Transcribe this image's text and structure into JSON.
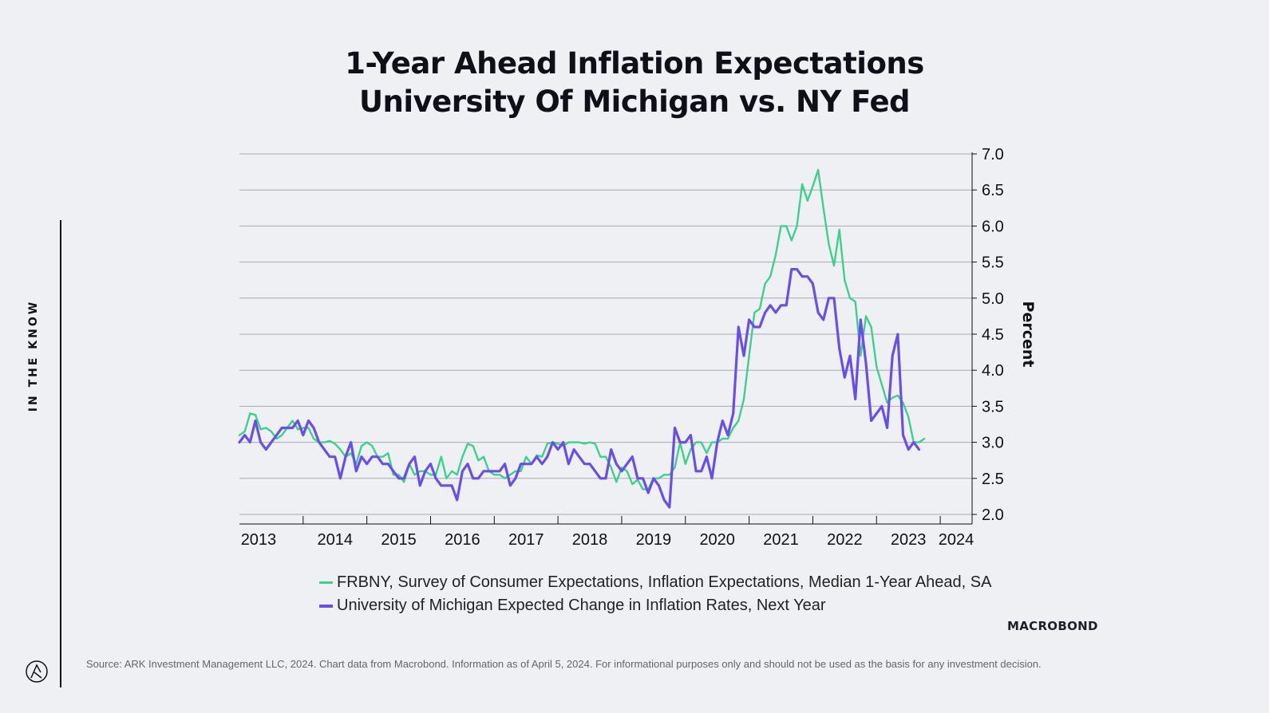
{
  "title_line1": "1-Year Ahead Inflation Expectations",
  "title_line2": "University Of Michigan vs. NY Fed",
  "side_label": "IN THE KNOW",
  "brand": "MACROBOND",
  "source": "Source: ARK Investment Management LLC, 2024. Chart data from Macrobond. Information as of April 5, 2024. For informational purposes only and should not be used as the basis for any investment decision.",
  "colors": {
    "frbny": "#3ecf8e",
    "umich": "#6b4fe0",
    "grid": "#a8a8ae",
    "text": "#111111"
  },
  "chart_data": {
    "type": "line",
    "ylabel": "Percent",
    "ylim": [
      2.0,
      7.0
    ],
    "yticks": [
      "7.0",
      "6.5",
      "6.0",
      "5.5",
      "5.0",
      "4.5",
      "4.0",
      "3.5",
      "3.0",
      "2.5",
      "2.0"
    ],
    "x_start": 2013.0,
    "x_end": 2024.5,
    "year_labels": [
      "2013",
      "2014",
      "2015",
      "2016",
      "2017",
      "2018",
      "2019",
      "2020",
      "2021",
      "2022",
      "2023",
      "2024"
    ],
    "series": [
      {
        "name": "FRBNY, Survey of Consumer Expectations, Inflation Expectations, Median 1-Year Ahead, SA",
        "start": 2013.0,
        "values": [
          3.1,
          3.15,
          3.4,
          3.38,
          3.18,
          3.2,
          3.15,
          3.05,
          3.1,
          3.2,
          3.3,
          3.18,
          3.2,
          3.2,
          3.05,
          3.0,
          3.0,
          3.02,
          2.98,
          2.9,
          2.8,
          2.85,
          2.7,
          2.95,
          3.0,
          2.95,
          2.8,
          2.8,
          2.85,
          2.55,
          2.55,
          2.45,
          2.7,
          2.55,
          2.6,
          2.6,
          2.55,
          2.55,
          2.8,
          2.5,
          2.6,
          2.55,
          2.8,
          2.98,
          2.95,
          2.75,
          2.8,
          2.6,
          2.55,
          2.55,
          2.5,
          2.55,
          2.6,
          2.6,
          2.8,
          2.7,
          2.82,
          2.8,
          2.98,
          3.0,
          2.98,
          2.95,
          3.0,
          3.0,
          3.0,
          2.98,
          3.0,
          2.98,
          2.8,
          2.8,
          2.65,
          2.45,
          2.65,
          2.6,
          2.42,
          2.48,
          2.35,
          2.35,
          2.5,
          2.5,
          2.55,
          2.55,
          2.65,
          3.0,
          2.7,
          2.9,
          3.0,
          3.0,
          2.85,
          3.0,
          3.0,
          3.05,
          3.05,
          3.2,
          3.3,
          3.6,
          4.2,
          4.8,
          4.85,
          5.2,
          5.3,
          5.6,
          6.0,
          6.0,
          5.8,
          6.0,
          6.58,
          6.35,
          6.55,
          6.78,
          6.25,
          5.75,
          5.45,
          5.95,
          5.25,
          5.0,
          4.95,
          4.2,
          4.75,
          4.6,
          4.05,
          3.8,
          3.55,
          3.62,
          3.65,
          3.55,
          3.35,
          3.0,
          3.0,
          3.05
        ]
      },
      {
        "name": "University of Michigan Expected Change in Inflation Rates, Next Year",
        "start": 2013.0,
        "values": [
          3.0,
          3.1,
          3.0,
          3.3,
          3.0,
          2.9,
          3.0,
          3.1,
          3.2,
          3.2,
          3.2,
          3.3,
          3.1,
          3.3,
          3.2,
          3.0,
          2.9,
          2.8,
          2.8,
          2.5,
          2.8,
          3.0,
          2.6,
          2.8,
          2.7,
          2.8,
          2.8,
          2.7,
          2.7,
          2.6,
          2.5,
          2.5,
          2.7,
          2.8,
          2.4,
          2.6,
          2.7,
          2.5,
          2.4,
          2.4,
          2.4,
          2.2,
          2.6,
          2.7,
          2.5,
          2.5,
          2.6,
          2.6,
          2.6,
          2.6,
          2.7,
          2.4,
          2.5,
          2.7,
          2.7,
          2.7,
          2.8,
          2.7,
          2.8,
          3.0,
          2.9,
          3.0,
          2.7,
          2.9,
          2.8,
          2.7,
          2.7,
          2.6,
          2.5,
          2.5,
          2.9,
          2.7,
          2.6,
          2.7,
          2.8,
          2.5,
          2.5,
          2.3,
          2.5,
          2.4,
          2.2,
          2.1,
          3.2,
          3.0,
          3.0,
          3.1,
          2.6,
          2.6,
          2.8,
          2.5,
          3.0,
          3.3,
          3.1,
          3.4,
          4.6,
          4.2,
          4.7,
          4.6,
          4.6,
          4.8,
          4.9,
          4.8,
          4.9,
          4.9,
          5.4,
          5.4,
          5.3,
          5.3,
          5.2,
          4.8,
          4.7,
          5.0,
          5.0,
          4.3,
          3.9,
          4.2,
          3.6,
          4.7,
          4.1,
          3.3,
          3.4,
          3.5,
          3.2,
          4.2,
          4.5,
          3.1,
          2.9,
          3.0,
          2.9
        ]
      }
    ]
  }
}
